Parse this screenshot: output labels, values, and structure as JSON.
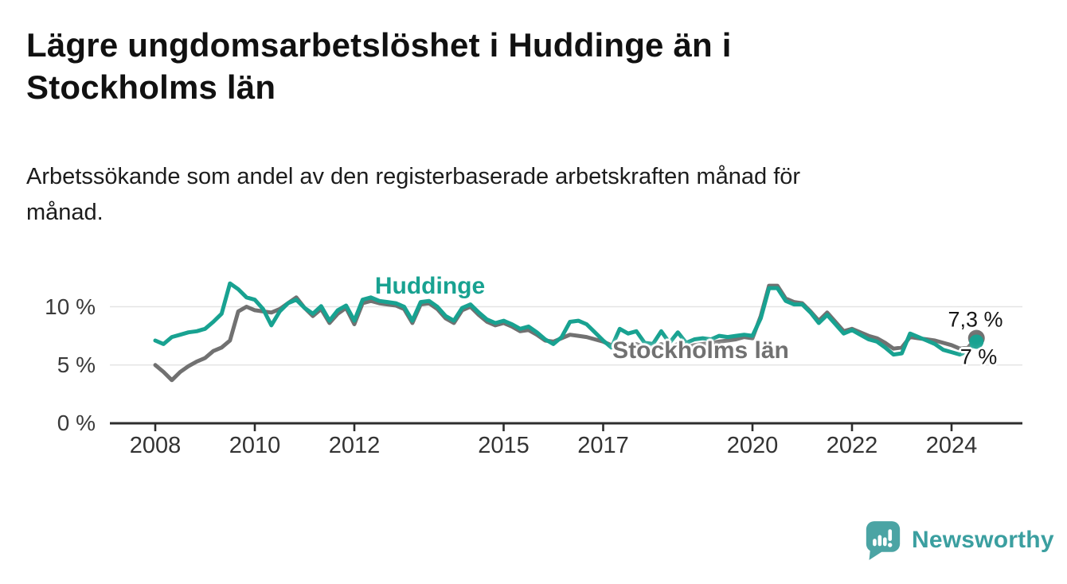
{
  "header": {
    "title_lines": [
      "Lägre ungdomsarbetslöshet i Huddinge än i",
      "Stockholms län"
    ],
    "subtitle_lines": [
      "Arbetssökande som andel av den registerbaserade arbetskraften månad för",
      "månad."
    ]
  },
  "chart_data": {
    "type": "line",
    "unit": "%",
    "x_start": 2008,
    "x_step_years": 0.1666667,
    "x_end_approx": 2024.5,
    "grid": "horizontal",
    "legend_position": "inline-labels-on-lines",
    "x_axis": {
      "ticks": [
        {
          "year": 2008,
          "label": "2008"
        },
        {
          "year": 2010,
          "label": "2010"
        },
        {
          "year": 2012,
          "label": "2012"
        },
        {
          "year": 2015,
          "label": "2015"
        },
        {
          "year": 2017,
          "label": "2017"
        },
        {
          "year": 2020,
          "label": "2020"
        },
        {
          "year": 2022,
          "label": "2022"
        },
        {
          "year": 2024,
          "label": "2024"
        }
      ]
    },
    "y_axis": {
      "ylim": [
        0,
        12.5
      ],
      "ticks": [
        {
          "value": 0,
          "label": "0 %"
        },
        {
          "value": 5,
          "label": "5 %"
        },
        {
          "value": 10,
          "label": "10 %"
        }
      ]
    },
    "series": [
      {
        "name": "Stockholms län",
        "color": "#717171",
        "end_value": 7.3,
        "end_label": "7,3 %",
        "values": [
          5.0,
          4.4,
          3.7,
          4.4,
          4.9,
          5.3,
          5.6,
          6.2,
          6.5,
          7.1,
          9.6,
          10.0,
          9.7,
          9.6,
          9.5,
          9.8,
          10.3,
          10.8,
          9.9,
          9.2,
          9.8,
          8.6,
          9.4,
          9.9,
          8.5,
          10.3,
          10.5,
          10.3,
          10.2,
          10.1,
          9.8,
          8.6,
          10.2,
          10.3,
          9.8,
          9.0,
          8.6,
          9.7,
          10.0,
          9.3,
          8.7,
          8.4,
          8.6,
          8.3,
          7.9,
          8.0,
          7.6,
          7.1,
          7.0,
          7.3,
          7.6,
          7.5,
          7.4,
          7.2,
          7.0,
          6.7,
          6.9,
          6.7,
          6.8,
          6.5,
          6.4,
          6.8,
          6.5,
          6.8,
          6.5,
          6.7,
          6.8,
          6.9,
          7.0,
          7.1,
          7.2,
          7.4,
          7.3,
          9.2,
          11.8,
          11.8,
          10.7,
          10.4,
          10.3,
          9.6,
          8.8,
          9.5,
          8.7,
          7.9,
          8.1,
          7.8,
          7.5,
          7.3,
          6.9,
          6.4,
          6.5,
          7.4,
          7.3,
          7.2,
          7.1,
          6.9,
          6.7,
          6.4,
          6.5,
          7.3
        ]
      },
      {
        "name": "Huddinge",
        "color": "#18a291",
        "end_value": 7.0,
        "end_label": "7 %",
        "values": [
          7.1,
          6.8,
          7.4,
          7.6,
          7.8,
          7.9,
          8.1,
          8.7,
          9.4,
          12.0,
          11.5,
          10.8,
          10.6,
          9.8,
          8.4,
          9.6,
          10.3,
          10.6,
          9.9,
          9.4,
          10.05,
          8.8,
          9.7,
          10.1,
          8.8,
          10.6,
          10.8,
          10.5,
          10.4,
          10.3,
          10.0,
          8.8,
          10.4,
          10.5,
          10.0,
          9.2,
          8.8,
          9.9,
          10.2,
          9.5,
          8.9,
          8.6,
          8.8,
          8.5,
          8.1,
          8.3,
          7.8,
          7.2,
          6.8,
          7.4,
          8.7,
          8.8,
          8.5,
          7.8,
          7.1,
          6.5,
          8.1,
          7.7,
          7.9,
          6.9,
          6.8,
          7.9,
          6.9,
          7.8,
          6.9,
          7.2,
          7.3,
          7.2,
          7.5,
          7.4,
          7.5,
          7.6,
          7.5,
          9.0,
          11.6,
          11.6,
          10.5,
          10.2,
          10.2,
          9.5,
          8.6,
          9.3,
          8.5,
          7.7,
          8.0,
          7.6,
          7.2,
          7.0,
          6.5,
          5.9,
          6.0,
          7.7,
          7.4,
          7.1,
          6.8,
          6.3,
          6.1,
          5.9,
          6.2,
          7.0
        ]
      }
    ]
  },
  "branding": {
    "logo_text": "Newsworthy",
    "logo_icon": "bar-chart-speech-bubble-icon",
    "icon_color": "#4ba4a4",
    "text_color": "#3b9fa0"
  },
  "style_colors": {
    "axis": "#2d2d2d",
    "gridline": "#e4e4e4",
    "tick_text": "#333333",
    "end_label_text": "#161616"
  }
}
